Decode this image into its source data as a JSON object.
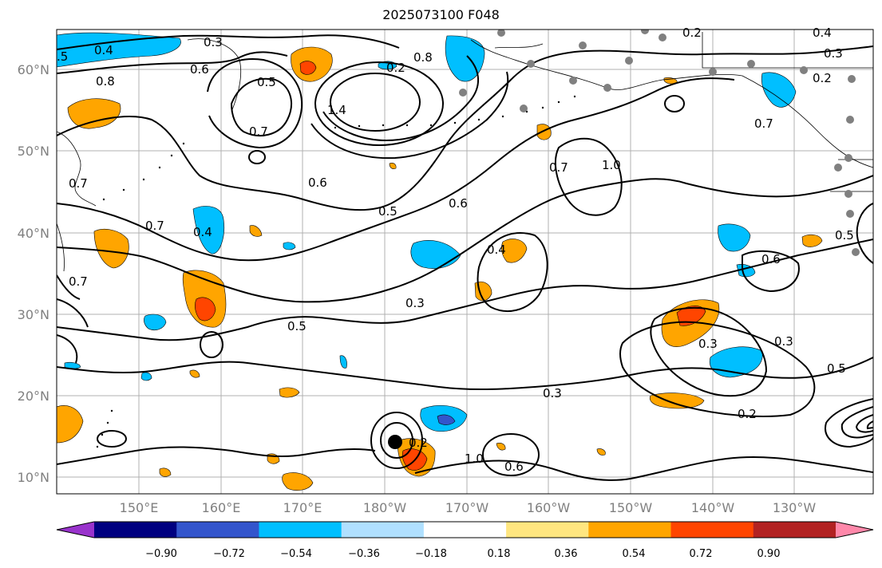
{
  "title": "2025073100 F048",
  "map": {
    "lat_labels": [
      "60°N",
      "50°N",
      "40°N",
      "30°N",
      "20°N",
      "10°N"
    ],
    "lon_labels": [
      "150°E",
      "160°E",
      "170°E",
      "180°W",
      "170°W",
      "160°W",
      "150°W",
      "140°W",
      "130°W"
    ]
  },
  "contour_labels": [
    "0.3",
    "0.4",
    ".5",
    "0.8",
    "0.6",
    "0.5",
    "0.7",
    "1.4",
    "0.8",
    "0.2",
    "0.4",
    "0.2",
    "0.3",
    "0.2",
    "0.7",
    "0.7",
    "0.6",
    "0.7",
    "1.0",
    "0.5",
    "0.6",
    "0.7",
    "0.4",
    "0.4",
    "0.3",
    "0.5",
    "0.6",
    "0.5",
    "0.3",
    "0.3",
    "0.5",
    "0.3",
    "0.2",
    "0.2",
    "1.0",
    "0.6",
    "0.7"
  ],
  "colorbar": {
    "ticks": [
      "−0.90",
      "−0.72",
      "−0.54",
      "−0.36",
      "−0.18",
      "0.18",
      "0.36",
      "0.54",
      "0.72",
      "0.90"
    ],
    "colors": [
      "#9933cc",
      "#000080",
      "#3355cc",
      "#00bfff",
      "#b0e0ff",
      "#ffffff",
      "#ffe680",
      "#ffa500",
      "#ff4500",
      "#b22222",
      "#ff88aa"
    ]
  }
}
